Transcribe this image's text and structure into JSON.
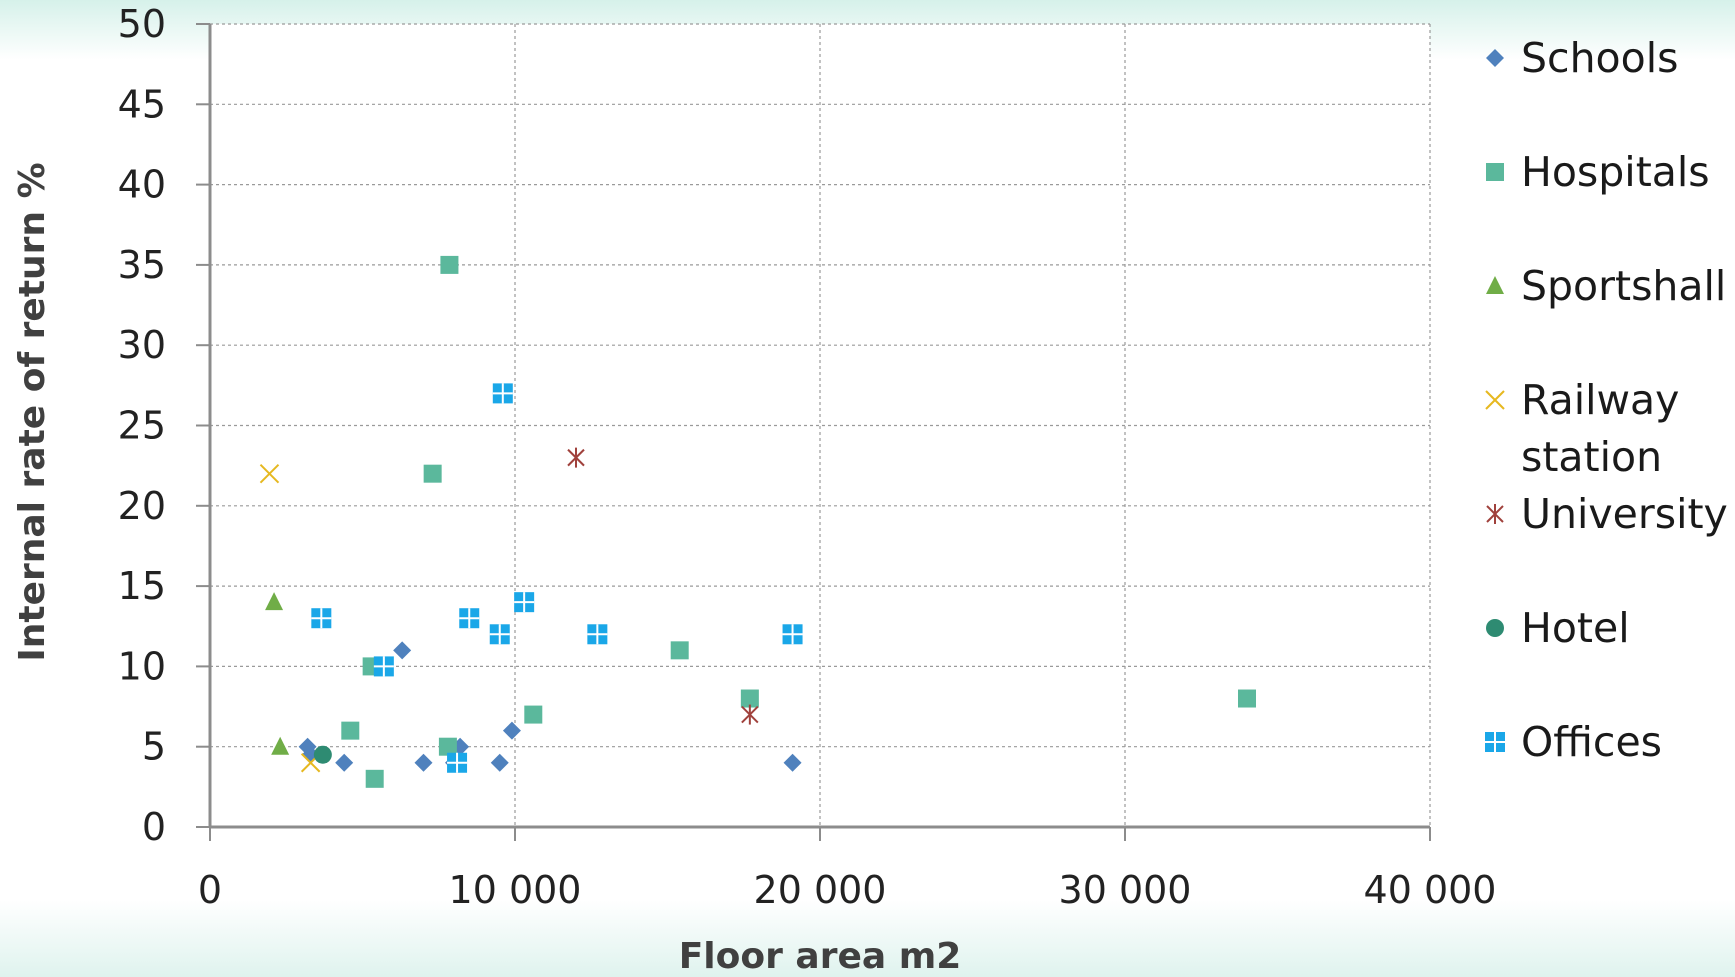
{
  "chart_data": {
    "type": "scatter",
    "title": "",
    "xlabel": "Floor area m2",
    "ylabel": "Internal rate of return %",
    "xlim": [
      0,
      40000
    ],
    "ylim": [
      0,
      50
    ],
    "x_ticks": [
      0,
      10000,
      20000,
      30000,
      40000
    ],
    "x_tick_labels": [
      "0",
      "10 000",
      "20 000",
      "30 000",
      "40 000"
    ],
    "y_ticks": [
      0,
      5,
      10,
      15,
      20,
      25,
      30,
      35,
      40,
      45,
      50
    ],
    "y_tick_labels": [
      "0",
      "5",
      "10",
      "15",
      "20",
      "25",
      "30",
      "35",
      "40",
      "45",
      "50"
    ],
    "grid": true,
    "legend_position": "right",
    "series": [
      {
        "name": "Schools",
        "marker": "diamond",
        "color": "#4f81bd",
        "legend_lines": [
          "Schools"
        ],
        "points": [
          [
            3200,
            5
          ],
          [
            3300,
            4.5
          ],
          [
            4400,
            4
          ],
          [
            6300,
            11
          ],
          [
            7000,
            4
          ],
          [
            8000,
            4
          ],
          [
            8200,
            5
          ],
          [
            9500,
            4
          ],
          [
            9900,
            6
          ],
          [
            19100,
            4
          ]
        ]
      },
      {
        "name": "Hospitals",
        "marker": "square",
        "color": "#4bacc6",
        "fill": "#5bb89c",
        "legend_lines": [
          "Hospitals"
        ],
        "points": [
          [
            7850,
            35
          ],
          [
            7300,
            22
          ],
          [
            5300,
            10
          ],
          [
            4600,
            6
          ],
          [
            5400,
            3
          ],
          [
            7800,
            5
          ],
          [
            10600,
            7
          ],
          [
            15400,
            11
          ],
          [
            17700,
            8
          ],
          [
            34000,
            8
          ]
        ]
      },
      {
        "name": "Sportshall",
        "marker": "triangle",
        "color": "#70ad47",
        "legend_lines": [
          "Sportshall"
        ],
        "points": [
          [
            2100,
            14
          ],
          [
            2300,
            5
          ]
        ]
      },
      {
        "name": "Railway station",
        "marker": "x",
        "color": "#e6b820",
        "legend_lines": [
          "Railway",
          "station"
        ],
        "points": [
          [
            1950,
            22
          ],
          [
            3300,
            4
          ]
        ]
      },
      {
        "name": "University",
        "marker": "star",
        "color": "#a0413c",
        "legend_lines": [
          "University"
        ],
        "points": [
          [
            12000,
            23
          ],
          [
            17700,
            7
          ]
        ]
      },
      {
        "name": "Hotel",
        "marker": "circle",
        "color": "#2e8b72",
        "legend_lines": [
          "Hotel"
        ],
        "points": [
          [
            3700,
            4.5
          ]
        ]
      },
      {
        "name": "Offices",
        "marker": "plus-square",
        "color": "#1aa7e8",
        "legend_lines": [
          "Offices"
        ],
        "points": [
          [
            9600,
            27
          ],
          [
            3650,
            13
          ],
          [
            8500,
            13
          ],
          [
            10300,
            14
          ],
          [
            9500,
            12
          ],
          [
            12700,
            12
          ],
          [
            19100,
            12
          ],
          [
            5700,
            10
          ],
          [
            8100,
            4
          ]
        ]
      }
    ]
  }
}
